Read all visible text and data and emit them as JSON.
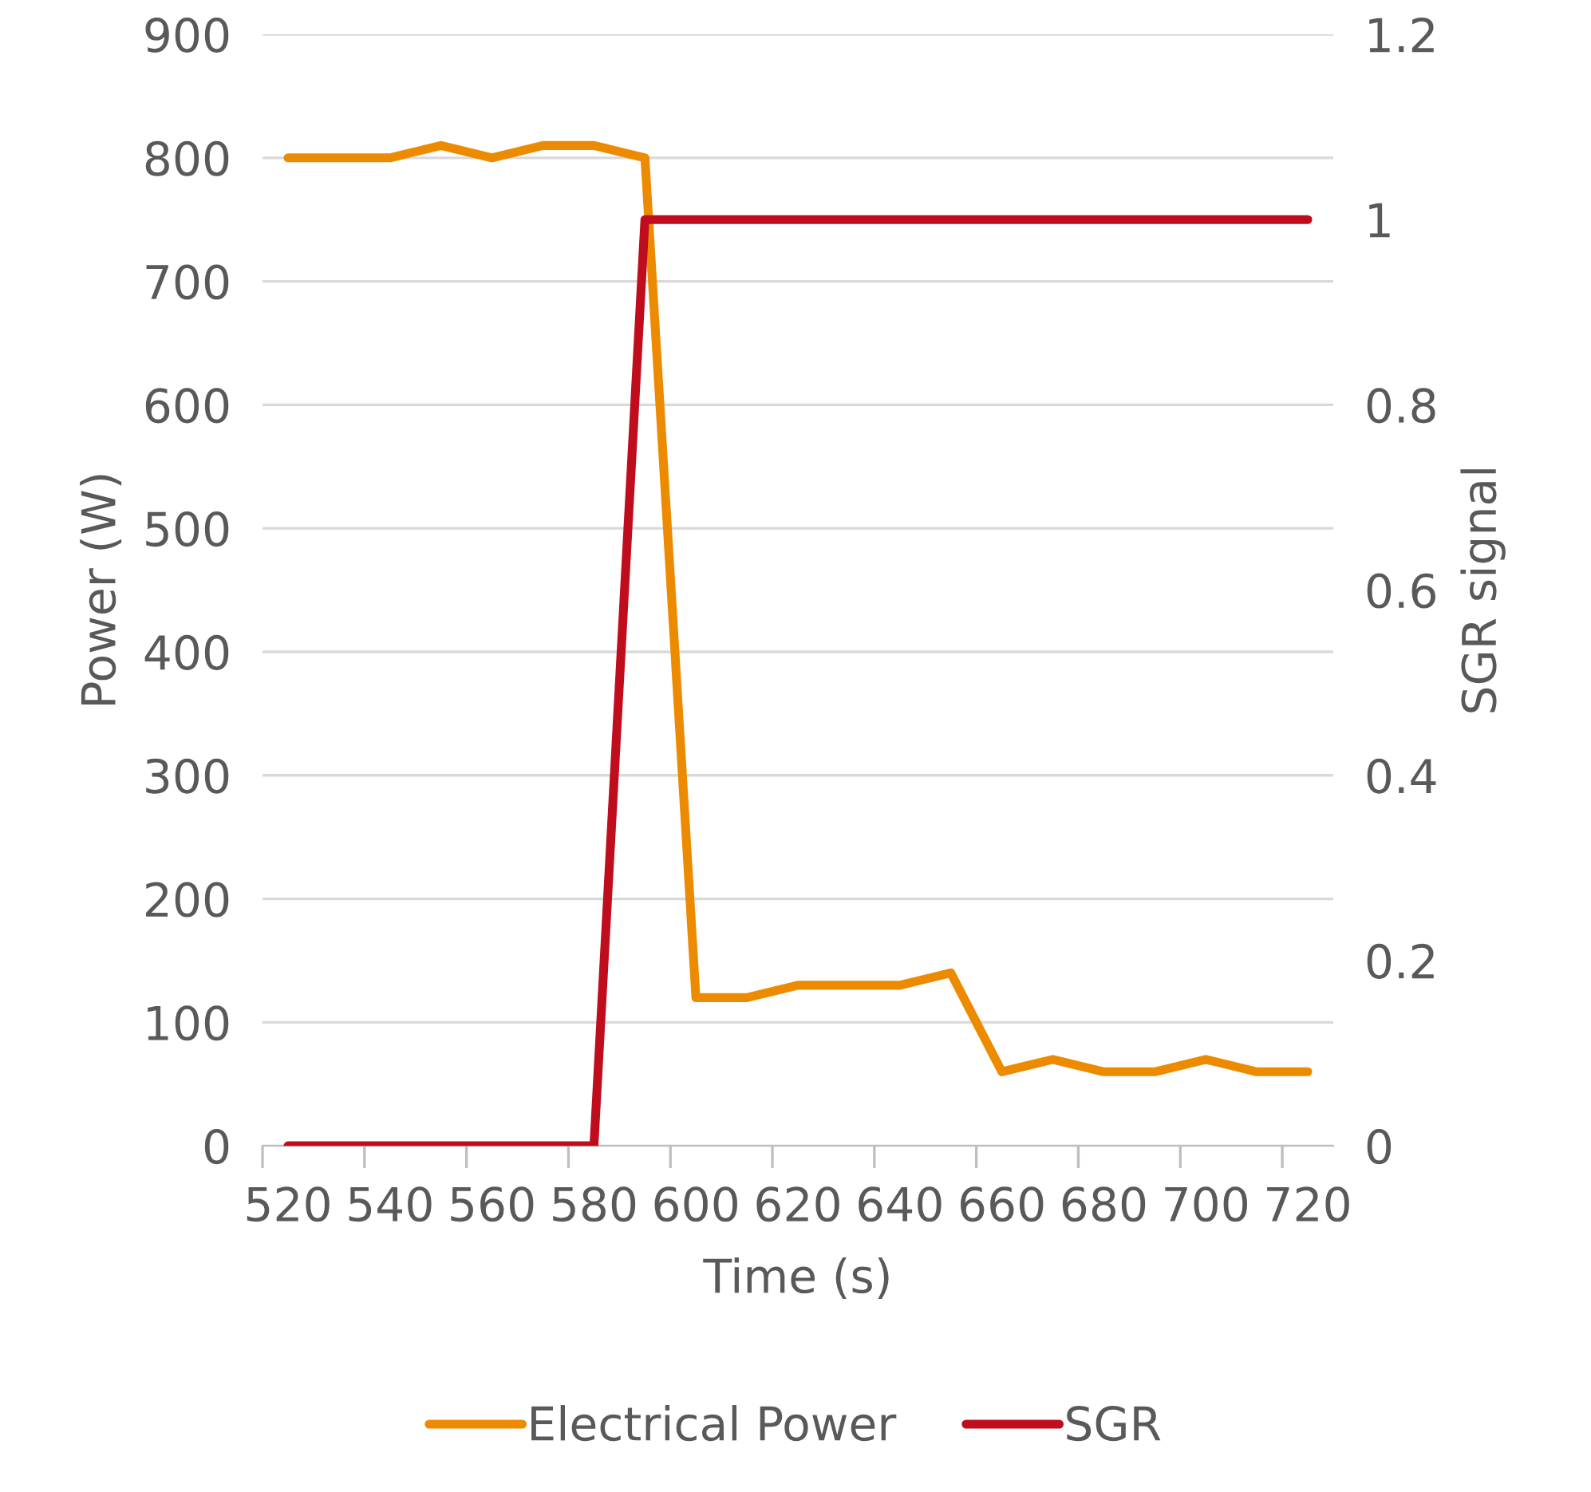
{
  "chart_data": {
    "type": "line",
    "xlabel": "Time (s)",
    "ylabel": "Power (W)",
    "y2label": "SGR signal",
    "x": [
      520,
      530,
      540,
      550,
      560,
      570,
      580,
      590,
      600,
      610,
      620,
      630,
      640,
      650,
      660,
      670,
      680,
      690,
      700,
      710,
      720
    ],
    "series": [
      {
        "name": "Electrical Power",
        "color": "#ed8b00",
        "values": [
          800,
          800,
          800,
          810,
          800,
          810,
          810,
          800,
          120,
          120,
          130,
          130,
          130,
          140,
          60,
          70,
          60,
          60,
          70,
          60,
          60
        ]
      },
      {
        "name": "SGR",
        "color": "#c00d1e",
        "axis": "y2",
        "values": [
          0,
          0,
          0,
          0,
          0,
          0,
          0,
          1,
          1,
          1,
          1,
          1,
          1,
          1,
          1,
          1,
          1,
          1,
          1,
          1,
          1
        ]
      }
    ],
    "xlim": [
      515,
      725
    ],
    "xticks": [
      520,
      540,
      560,
      580,
      600,
      620,
      640,
      660,
      680,
      700,
      720,
      {
        "value": 515,
        "label": null
      },
      {
        "value": 535,
        "label": null
      },
      {
        "value": 555,
        "label": null
      },
      {
        "value": 575,
        "label": null
      },
      {
        "value": 595,
        "label": null
      },
      {
        "value": 615,
        "label": null
      },
      {
        "value": 635,
        "label": null
      },
      {
        "value": 655,
        "label": null
      },
      {
        "value": 675,
        "label": null
      },
      {
        "value": 695,
        "label": null
      },
      {
        "value": 715,
        "label": null
      }
    ],
    "ylim": [
      0,
      900
    ],
    "yticks": [
      0,
      100,
      200,
      300,
      400,
      500,
      600,
      700,
      800,
      900
    ],
    "y2lim": [
      0,
      1.2
    ],
    "y2ticks": [
      0,
      0.2,
      0.4,
      0.6,
      0.8,
      1,
      1.2
    ],
    "grid": "y",
    "legend": "bottom",
    "marker": "none",
    "line_style": "solid"
  }
}
